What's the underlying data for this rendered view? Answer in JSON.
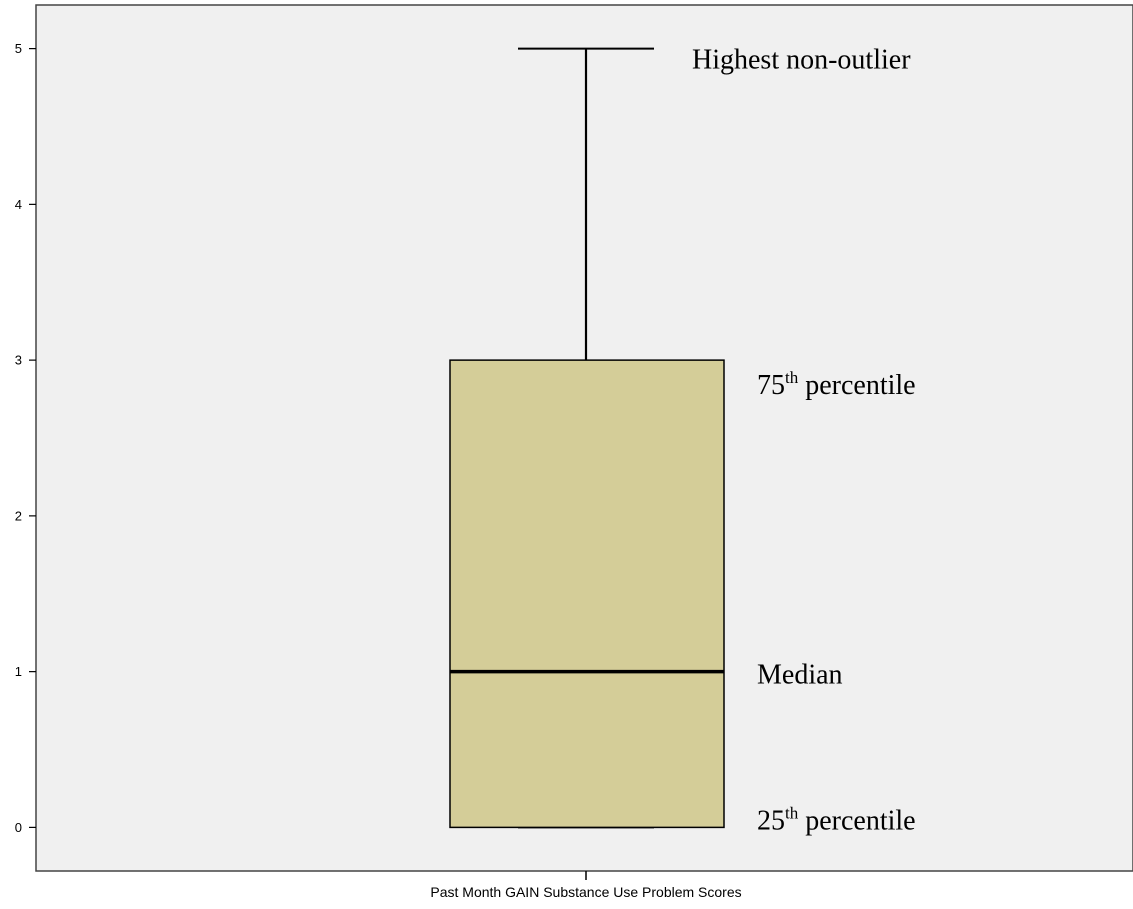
{
  "chart_data": {
    "type": "box",
    "xlabel": "Past Month GAIN Substance Use Problem Scores",
    "ylabel": "",
    "ylim": [
      -0.28,
      5.28
    ],
    "yticks": [
      0,
      1,
      2,
      3,
      4,
      5
    ],
    "grid": false,
    "colors": {
      "box_fill": "#d4cd98",
      "plot_bg": "#f0f0f0",
      "stroke": "#000000"
    },
    "box": {
      "whisker_low": 0,
      "q1": 0,
      "median": 1,
      "q3": 3,
      "whisker_high": 5
    },
    "annotations": [
      {
        "target": "whisker_high",
        "text": "Highest non-outlier"
      },
      {
        "target": "q3",
        "text": "75",
        "sup": "th",
        "rest": " percentile"
      },
      {
        "target": "median",
        "text": "Median"
      },
      {
        "target": "q1",
        "text": "25",
        "sup": "th",
        "rest": " percentile"
      }
    ]
  }
}
